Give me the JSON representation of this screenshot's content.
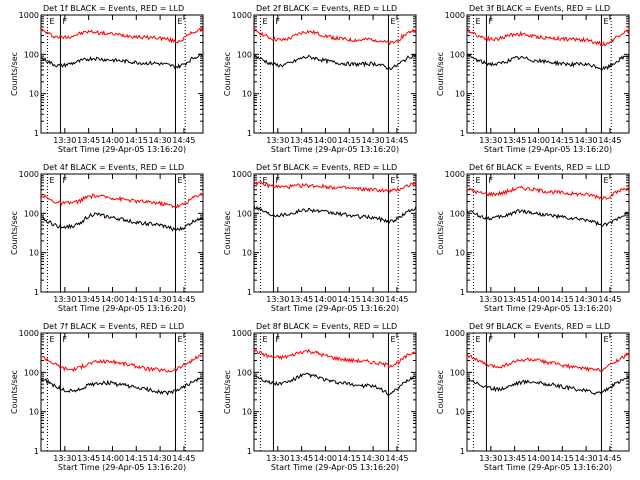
{
  "chart_data": [
    {
      "type": "line",
      "title": "Det 1f BLACK = Events, RED = LLD",
      "xlabel": "Start Time (29-Apr-05 13:16:20)",
      "ylabel": "Counts/sec",
      "yscale": "log",
      "ylim": [
        1,
        1000
      ],
      "xlim": [
        0,
        100
      ],
      "x_ticks": [
        "13:30",
        "13:45",
        "14:00",
        "14:15",
        "14:30",
        "14:45"
      ],
      "y_ticks": [
        "1",
        "10",
        "100",
        "1000"
      ],
      "markers": [
        {
          "x": 4,
          "label": "E",
          "style": "dotted"
        },
        {
          "x": 12,
          "label": "F",
          "style": "solid"
        },
        {
          "x": 83,
          "label": "E",
          "style": "solid"
        },
        {
          "x": 89,
          "label": "",
          "style": "dotted"
        }
      ],
      "series": [
        {
          "color": "#ff0000",
          "y": [
            420,
            360,
            300,
            280,
            270,
            280,
            300,
            330,
            360,
            380,
            370,
            350,
            340,
            330,
            320,
            310,
            300,
            290,
            280,
            270,
            270,
            270,
            260,
            250,
            230,
            210,
            230,
            290,
            360,
            400,
            430
          ]
        },
        {
          "color": "#000000",
          "y": [
            80,
            70,
            58,
            52,
            52,
            56,
            60,
            66,
            72,
            78,
            80,
            76,
            74,
            72,
            70,
            68,
            66,
            64,
            62,
            60,
            60,
            60,
            58,
            56,
            52,
            48,
            52,
            62,
            78,
            90,
            100
          ]
        }
      ]
    },
    {
      "type": "line",
      "title": "Det 2f BLACK = Events, RED = LLD",
      "xlabel": "Start Time (29-Apr-05 13:16:20)",
      "ylabel": "Counts/sec",
      "yscale": "log",
      "ylim": [
        1,
        1000
      ],
      "xlim": [
        0,
        100
      ],
      "x_ticks": [
        "13:30",
        "13:45",
        "14:00",
        "14:15",
        "14:30",
        "14:45"
      ],
      "y_ticks": [
        "1",
        "10",
        "100",
        "1000"
      ],
      "markers": [
        {
          "x": 4,
          "label": "E",
          "style": "dotted"
        },
        {
          "x": 12,
          "label": "F",
          "style": "solid"
        },
        {
          "x": 83,
          "label": "E",
          "style": "solid"
        },
        {
          "x": 89,
          "label": "",
          "style": "dotted"
        }
      ],
      "series": [
        {
          "color": "#ff0000",
          "y": [
            420,
            360,
            300,
            260,
            240,
            230,
            240,
            270,
            320,
            360,
            380,
            360,
            330,
            300,
            280,
            260,
            250,
            240,
            230,
            230,
            230,
            240,
            240,
            230,
            210,
            190,
            200,
            250,
            320,
            380,
            420
          ]
        },
        {
          "color": "#000000",
          "y": [
            90,
            80,
            68,
            58,
            54,
            52,
            56,
            62,
            72,
            82,
            86,
            82,
            76,
            70,
            66,
            62,
            60,
            58,
            56,
            56,
            56,
            58,
            58,
            56,
            50,
            44,
            48,
            58,
            74,
            88,
            100
          ]
        }
      ]
    },
    {
      "type": "line",
      "title": "Det 3f BLACK = Events, RED = LLD",
      "xlabel": "Start Time (29-Apr-05 13:16:20)",
      "ylabel": "Counts/sec",
      "yscale": "log",
      "ylim": [
        1,
        1000
      ],
      "xlim": [
        0,
        100
      ],
      "x_ticks": [
        "13:30",
        "13:45",
        "14:00",
        "14:15",
        "14:30",
        "14:45"
      ],
      "y_ticks": [
        "1",
        "10",
        "100",
        "1000"
      ],
      "markers": [
        {
          "x": 4,
          "label": "E",
          "style": "dotted"
        },
        {
          "x": 12,
          "label": "F",
          "style": "solid"
        },
        {
          "x": 83,
          "label": "E",
          "style": "solid"
        },
        {
          "x": 89,
          "label": "",
          "style": "dotted"
        }
      ],
      "series": [
        {
          "color": "#ff0000",
          "y": [
            420,
            360,
            300,
            270,
            250,
            240,
            250,
            280,
            310,
            330,
            330,
            310,
            290,
            280,
            270,
            260,
            260,
            250,
            250,
            240,
            240,
            240,
            230,
            220,
            200,
            180,
            190,
            230,
            300,
            360,
            400
          ]
        },
        {
          "color": "#000000",
          "y": [
            95,
            82,
            70,
            62,
            58,
            56,
            58,
            64,
            72,
            80,
            82,
            78,
            72,
            68,
            66,
            64,
            62,
            60,
            58,
            56,
            56,
            56,
            54,
            52,
            48,
            42,
            46,
            56,
            70,
            84,
            96
          ]
        }
      ]
    },
    {
      "type": "line",
      "title": "Det 4f BLACK = Events, RED = LLD",
      "xlabel": "Start Time (29-Apr-05 13:16:20)",
      "ylabel": "Counts/sec",
      "yscale": "log",
      "ylim": [
        1,
        1000
      ],
      "xlim": [
        0,
        100
      ],
      "x_ticks": [
        "13:30",
        "13:45",
        "14:00",
        "14:15",
        "14:30",
        "14:45"
      ],
      "y_ticks": [
        "1",
        "10",
        "100",
        "1000"
      ],
      "markers": [
        {
          "x": 4,
          "label": "E",
          "style": "dotted"
        },
        {
          "x": 12,
          "label": "F",
          "style": "solid"
        },
        {
          "x": 83,
          "label": "E",
          "style": "solid"
        },
        {
          "x": 89,
          "label": "",
          "style": "dotted"
        }
      ],
      "series": [
        {
          "color": "#ff0000",
          "y": [
            300,
            250,
            210,
            190,
            180,
            180,
            190,
            200,
            240,
            270,
            280,
            270,
            260,
            250,
            240,
            230,
            220,
            210,
            200,
            200,
            190,
            190,
            180,
            170,
            160,
            150,
            160,
            190,
            240,
            290,
            320
          ]
        },
        {
          "color": "#000000",
          "y": [
            75,
            65,
            55,
            48,
            46,
            46,
            48,
            52,
            70,
            90,
            95,
            90,
            84,
            78,
            74,
            70,
            66,
            62,
            58,
            56,
            54,
            52,
            50,
            46,
            42,
            38,
            40,
            48,
            60,
            72,
            82
          ]
        }
      ]
    },
    {
      "type": "line",
      "title": "Det 5f BLACK = Events, RED = LLD",
      "xlabel": "Start Time (29-Apr-05 13:16:20)",
      "ylabel": "Counts/sec",
      "yscale": "log",
      "ylim": [
        1,
        1000
      ],
      "xlim": [
        0,
        100
      ],
      "x_ticks": [
        "13:30",
        "13:45",
        "14:00",
        "14:15",
        "14:30",
        "14:45"
      ],
      "y_ticks": [
        "1",
        "10",
        "100",
        "1000"
      ],
      "markers": [
        {
          "x": 4,
          "label": "E",
          "style": "dotted"
        },
        {
          "x": 12,
          "label": "F",
          "style": "solid"
        },
        {
          "x": 83,
          "label": "E",
          "style": "solid"
        },
        {
          "x": 89,
          "label": "",
          "style": "dotted"
        }
      ],
      "series": [
        {
          "color": "#ff0000",
          "y": [
            620,
            580,
            540,
            500,
            480,
            470,
            470,
            480,
            500,
            510,
            510,
            500,
            490,
            480,
            470,
            460,
            450,
            440,
            430,
            420,
            410,
            410,
            400,
            390,
            380,
            370,
            380,
            420,
            480,
            540,
            600
          ]
        },
        {
          "color": "#000000",
          "y": [
            150,
            130,
            110,
            96,
            92,
            92,
            96,
            100,
            110,
            120,
            126,
            120,
            114,
            108,
            104,
            100,
            96,
            92,
            88,
            84,
            82,
            80,
            78,
            74,
            68,
            62,
            66,
            80,
            100,
            120,
            140
          ]
        }
      ]
    },
    {
      "type": "line",
      "title": "Det 6f BLACK = Events, RED = LLD",
      "xlabel": "Start Time (29-Apr-05 13:16:20)",
      "ylabel": "Counts/sec",
      "yscale": "log",
      "ylim": [
        1,
        1000
      ],
      "xlim": [
        0,
        100
      ],
      "x_ticks": [
        "13:30",
        "13:45",
        "14:00",
        "14:15",
        "14:30",
        "14:45"
      ],
      "y_ticks": [
        "1",
        "10",
        "100",
        "1000"
      ],
      "markers": [
        {
          "x": 4,
          "label": "E",
          "style": "dotted"
        },
        {
          "x": 12,
          "label": "F",
          "style": "solid"
        },
        {
          "x": 83,
          "label": "E",
          "style": "solid"
        },
        {
          "x": 89,
          "label": "",
          "style": "dotted"
        }
      ],
      "series": [
        {
          "color": "#ff0000",
          "y": [
            420,
            380,
            340,
            320,
            310,
            310,
            320,
            340,
            380,
            420,
            440,
            430,
            410,
            390,
            370,
            360,
            350,
            340,
            330,
            320,
            310,
            310,
            300,
            290,
            270,
            250,
            260,
            300,
            360,
            420,
            460
          ]
        },
        {
          "color": "#000000",
          "y": [
            120,
            105,
            90,
            80,
            76,
            76,
            80,
            86,
            96,
            110,
            116,
            110,
            104,
            98,
            94,
            90,
            86,
            82,
            78,
            74,
            72,
            70,
            68,
            64,
            56,
            48,
            52,
            62,
            78,
            92,
            104
          ]
        }
      ]
    },
    {
      "type": "line",
      "title": "Det 7f BLACK = Events, RED = LLD",
      "xlabel": "Start Time (29-Apr-05 13:16:20)",
      "ylabel": "Counts/sec",
      "yscale": "log",
      "ylim": [
        1,
        1000
      ],
      "xlim": [
        0,
        100
      ],
      "x_ticks": [
        "13:30",
        "13:45",
        "14:00",
        "14:15",
        "14:30",
        "14:45"
      ],
      "y_ticks": [
        "1",
        "10",
        "100",
        "1000"
      ],
      "markers": [
        {
          "x": 4,
          "label": "E",
          "style": "dotted"
        },
        {
          "x": 12,
          "label": "F",
          "style": "solid"
        },
        {
          "x": 83,
          "label": "E",
          "style": "solid"
        },
        {
          "x": 89,
          "label": "",
          "style": "dotted"
        }
      ],
      "series": [
        {
          "color": "#ff0000",
          "y": [
            260,
            220,
            180,
            150,
            130,
            120,
            120,
            130,
            150,
            170,
            180,
            190,
            190,
            190,
            180,
            170,
            160,
            150,
            140,
            130,
            120,
            120,
            115,
            110,
            110,
            120,
            140,
            170,
            200,
            240,
            280
          ]
        },
        {
          "color": "#000000",
          "y": [
            70,
            60,
            50,
            42,
            36,
            34,
            34,
            36,
            42,
            48,
            52,
            54,
            54,
            54,
            50,
            48,
            46,
            42,
            40,
            38,
            36,
            34,
            32,
            30,
            30,
            34,
            40,
            48,
            56,
            64,
            72
          ]
        }
      ]
    },
    {
      "type": "line",
      "title": "Det 8f BLACK = Events, RED = LLD",
      "xlabel": "Start Time (29-Apr-05 13:16:20)",
      "ylabel": "Counts/sec",
      "yscale": "log",
      "ylim": [
        1,
        1000
      ],
      "xlim": [
        0,
        100
      ],
      "x_ticks": [
        "13:30",
        "13:45",
        "14:00",
        "14:15",
        "14:30",
        "14:45"
      ],
      "y_ticks": [
        "1",
        "10",
        "100",
        "1000"
      ],
      "markers": [
        {
          "x": 4,
          "label": "E",
          "style": "dotted"
        },
        {
          "x": 12,
          "label": "F",
          "style": "solid"
        },
        {
          "x": 83,
          "label": "E",
          "style": "solid"
        },
        {
          "x": 89,
          "label": "",
          "style": "dotted"
        }
      ],
      "series": [
        {
          "color": "#ff0000",
          "y": [
            360,
            320,
            280,
            250,
            240,
            240,
            250,
            270,
            310,
            340,
            350,
            330,
            300,
            270,
            250,
            230,
            220,
            210,
            200,
            200,
            190,
            190,
            180,
            170,
            160,
            150,
            160,
            190,
            240,
            300,
            340
          ]
        },
        {
          "color": "#000000",
          "y": [
            85,
            75,
            62,
            54,
            52,
            52,
            56,
            62,
            74,
            84,
            88,
            82,
            74,
            66,
            60,
            56,
            54,
            52,
            50,
            48,
            46,
            46,
            44,
            40,
            34,
            28,
            32,
            42,
            56,
            70,
            82
          ]
        }
      ]
    },
    {
      "type": "line",
      "title": "Det 9f BLACK = Events, RED = LLD",
      "xlabel": "Start Time (29-Apr-05 13:16:20)",
      "ylabel": "Counts/sec",
      "yscale": "log",
      "ylim": [
        1,
        1000
      ],
      "xlim": [
        0,
        100
      ],
      "x_ticks": [
        "13:30",
        "13:45",
        "14:00",
        "14:15",
        "14:30",
        "14:45"
      ],
      "y_ticks": [
        "1",
        "10",
        "100",
        "1000"
      ],
      "markers": [
        {
          "x": 4,
          "label": "E",
          "style": "dotted"
        },
        {
          "x": 12,
          "label": "F",
          "style": "solid"
        },
        {
          "x": 83,
          "label": "E",
          "style": "solid"
        },
        {
          "x": 89,
          "label": "",
          "style": "dotted"
        }
      ],
      "series": [
        {
          "color": "#ff0000",
          "y": [
            280,
            240,
            200,
            170,
            150,
            140,
            140,
            150,
            170,
            190,
            200,
            210,
            210,
            200,
            190,
            180,
            170,
            160,
            150,
            140,
            130,
            130,
            125,
            120,
            115,
            120,
            140,
            170,
            210,
            250,
            290
          ]
        },
        {
          "color": "#000000",
          "y": [
            72,
            62,
            52,
            44,
            40,
            38,
            38,
            40,
            46,
            52,
            56,
            58,
            58,
            56,
            52,
            50,
            48,
            44,
            42,
            40,
            38,
            36,
            34,
            32,
            30,
            32,
            38,
            46,
            56,
            66,
            76
          ]
        }
      ]
    }
  ]
}
